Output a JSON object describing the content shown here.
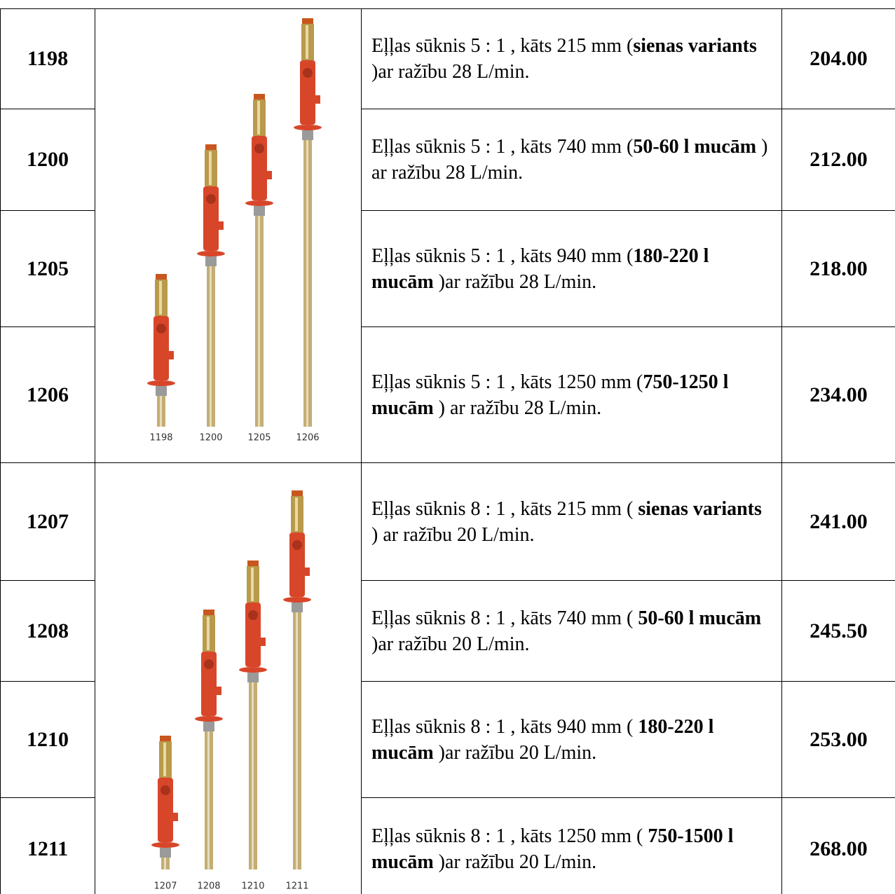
{
  "groups": [
    {
      "image_labels": [
        "1198",
        "1200",
        "1205",
        "1206"
      ],
      "rows": [
        {
          "code": "1198",
          "description": [
            {
              "text": "Eļļas sūknis 5 : 1 , kāts 215 mm (",
              "bold": false
            },
            {
              "text": "sienas variants",
              "bold": true
            },
            {
              "text": " )ar ražību 28 L/min.",
              "bold": false
            }
          ],
          "price": "204.00"
        },
        {
          "code": "1200",
          "description": [
            {
              "text": "Eļļas sūknis 5 : 1 , kāts 740 mm (",
              "bold": false
            },
            {
              "text": "50-60 l mucām",
              "bold": true
            },
            {
              "text": " ) ar ražību 28 L/min.",
              "bold": false
            }
          ],
          "price": "212.00"
        },
        {
          "code": "1205",
          "description": [
            {
              "text": "Eļļas sūknis 5 : 1 , kāts 940 mm (",
              "bold": false
            },
            {
              "text": "180-220 l mucām",
              "bold": true
            },
            {
              "text": " )ar ražību 28 L/min.",
              "bold": false
            }
          ],
          "price": "218.00"
        },
        {
          "code": "1206",
          "description": [
            {
              "text": "Eļļas sūknis 5 : 1 , kāts 1250 mm (",
              "bold": false
            },
            {
              "text": "750-1250 l mucām",
              "bold": true
            },
            {
              "text": " ) ar ražību 28 L/min.",
              "bold": false
            }
          ],
          "price": "234.00"
        }
      ]
    },
    {
      "image_labels": [
        "1207",
        "1208",
        "1210",
        "1211"
      ],
      "rows": [
        {
          "code": "1207",
          "description": [
            {
              "text": "Eļļas sūknis 8 : 1 , kāts 215 mm ( ",
              "bold": false
            },
            {
              "text": "sienas variants",
              "bold": true
            },
            {
              "text": " ) ar ražību 20 L/min.",
              "bold": false
            }
          ],
          "price": "241.00"
        },
        {
          "code": "1208",
          "description": [
            {
              "text": "Eļļas sūknis 8 : 1 , kāts 740 mm ( ",
              "bold": false
            },
            {
              "text": "50-60 l mucām",
              "bold": true
            },
            {
              "text": " )ar ražību 20 L/min.",
              "bold": false
            }
          ],
          "price": "245.50"
        },
        {
          "code": "1210",
          "description": [
            {
              "text": "Eļļas sūknis 8 : 1 , kāts 940 mm ( ",
              "bold": false
            },
            {
              "text": "180-220 l mucām",
              "bold": true
            },
            {
              "text": " )ar ražību 20 L/min.",
              "bold": false
            }
          ],
          "price": "253.00"
        },
        {
          "code": "1211",
          "description": [
            {
              "text": "Eļļas sūknis 8 : 1 , kāts 1250 mm ( ",
              "bold": false
            },
            {
              "text": "750-1500 l mucām",
              "bold": true
            },
            {
              "text": " )ar ražību 20 L/min.",
              "bold": false
            }
          ],
          "price": "268.00"
        }
      ]
    }
  ]
}
